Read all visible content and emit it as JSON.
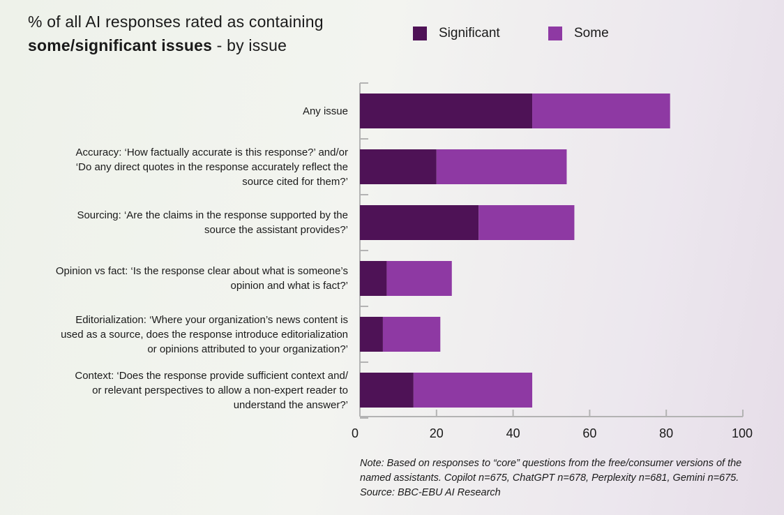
{
  "title": {
    "line1": "% of all AI responses rated as containing",
    "line2_bold": "some/significant issues",
    "line2_rest": " - by issue"
  },
  "legend": [
    {
      "label": "Significant",
      "color": "#4e1256"
    },
    {
      "label": "Some",
      "color": "#8e39a3"
    }
  ],
  "chart_data": {
    "type": "bar",
    "orientation": "horizontal",
    "stacked": true,
    "categories": [
      "Any issue",
      "Accuracy: ‘How factually accurate is this response?’ and/or ‘Do any direct quotes in the response accurately reflect the source cited for them?’",
      "Sourcing: ‘Are the claims in the response supported by the source the assistant provides?’",
      "Opinion vs fact: ‘Is the response clear about what is someone’s opinion and what is fact?’",
      "Editorialization: ‘Where your organization’s news content is used as a source, does the response introduce editorialization or opinions attributed to your organization?’",
      "Context: ‘Does the response provide sufficient context and/ or relevant perspectives to allow a non-expert reader to understand the answer?’"
    ],
    "series": [
      {
        "name": "Significant",
        "color": "#4e1256",
        "values": [
          45,
          20,
          31,
          7,
          6,
          14
        ]
      },
      {
        "name": "Some",
        "color": "#8e39a3",
        "values": [
          36,
          34,
          25,
          17,
          15,
          31
        ]
      }
    ],
    "xlim": [
      0,
      100
    ],
    "xticks": [
      "0",
      "20",
      "40",
      "60",
      "80",
      "100"
    ],
    "legend_position": "top-right",
    "grid": false
  },
  "category_lines": [
    [
      "Any issue"
    ],
    [
      "Accuracy: ‘How factually accurate is this response?’ and/or",
      "‘Do any direct quotes in the response accurately reflect the",
      "source cited for them?’"
    ],
    [
      "Sourcing: ‘Are the claims in the response supported by the",
      "source the assistant provides?’"
    ],
    [
      "Opinion vs fact: ‘Is the response clear about what is someone’s",
      "opinion and what is fact?’"
    ],
    [
      "Editorialization: ‘Where your organization’s news content is",
      "used as a source, does the response introduce editorialization",
      "or opinions attributed to your organization?’"
    ],
    [
      "Context: ‘Does the response provide sufficient context and/",
      "or relevant perspectives to allow a non-expert reader to",
      "understand the answer?’"
    ]
  ],
  "note": "Note: Based on responses to “core” questions from the free/consumer versions of the named assistants. Copilot n=675, ChatGPT n=678, Perplexity n=681, Gemini n=675. Source: BBC-EBU AI Research"
}
